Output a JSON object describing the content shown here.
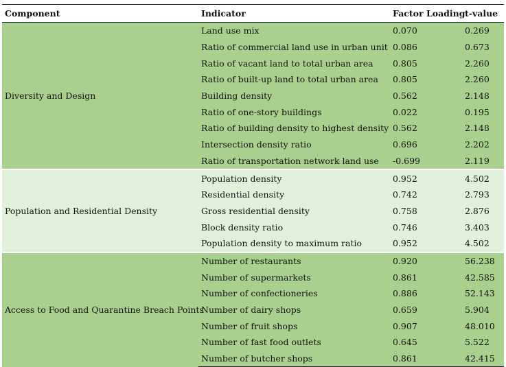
{
  "headers": [
    "Component",
    "Indicator",
    "Factor Loading",
    "t-value"
  ],
  "groups": [
    {
      "component": "Diversity and Design",
      "color": "#a9d08e",
      "rows": [
        [
          "Land use mix",
          "0.070",
          "0.269"
        ],
        [
          "Ratio of commercial land use in urban unit",
          "0.086",
          "0.673"
        ],
        [
          "Ratio of vacant land to total urban area",
          "0.805",
          "2.260"
        ],
        [
          "Ratio of built-up land to total urban area",
          "0.805",
          "2.260"
        ],
        [
          "Building density",
          "0.562",
          "2.148"
        ],
        [
          "Ratio of one-story buildings",
          "0.022",
          "0.195"
        ],
        [
          "Ratio of building density to highest density",
          "0.562",
          "2.148"
        ],
        [
          "Intersection density ratio",
          "0.696",
          "2.202"
        ],
        [
          "Ratio of transportation network land use",
          "-0.699",
          "2.119"
        ]
      ]
    },
    {
      "component": "Population and Residential Density",
      "color": "#e2efda",
      "rows": [
        [
          "Population density",
          "0.952",
          "4.502"
        ],
        [
          "Residential density",
          "0.742",
          "2.793"
        ],
        [
          "Gross residential density",
          "0.758",
          "2.876"
        ],
        [
          "Block density ratio",
          "0.746",
          "3.403"
        ],
        [
          "Population density to maximum ratio",
          "0.952",
          "4.502"
        ]
      ]
    },
    {
      "component": "Access to Food and Quarantine Breach Points",
      "color": "#a9d08e",
      "rows": [
        [
          "Number of restaurants",
          "0.920",
          "56.238"
        ],
        [
          "Number of supermarkets",
          "0.861",
          "42.585"
        ],
        [
          "Number of confectioneries",
          "0.886",
          "52.143"
        ],
        [
          "Number of dairy shops",
          "0.659",
          "5.904"
        ],
        [
          "Number of fruit shops",
          "0.907",
          "48.010"
        ],
        [
          "Number of fast food outlets",
          "0.645",
          "5.522"
        ],
        [
          "Number of butcher shops",
          "0.861",
          "42.415"
        ]
      ]
    }
  ]
}
